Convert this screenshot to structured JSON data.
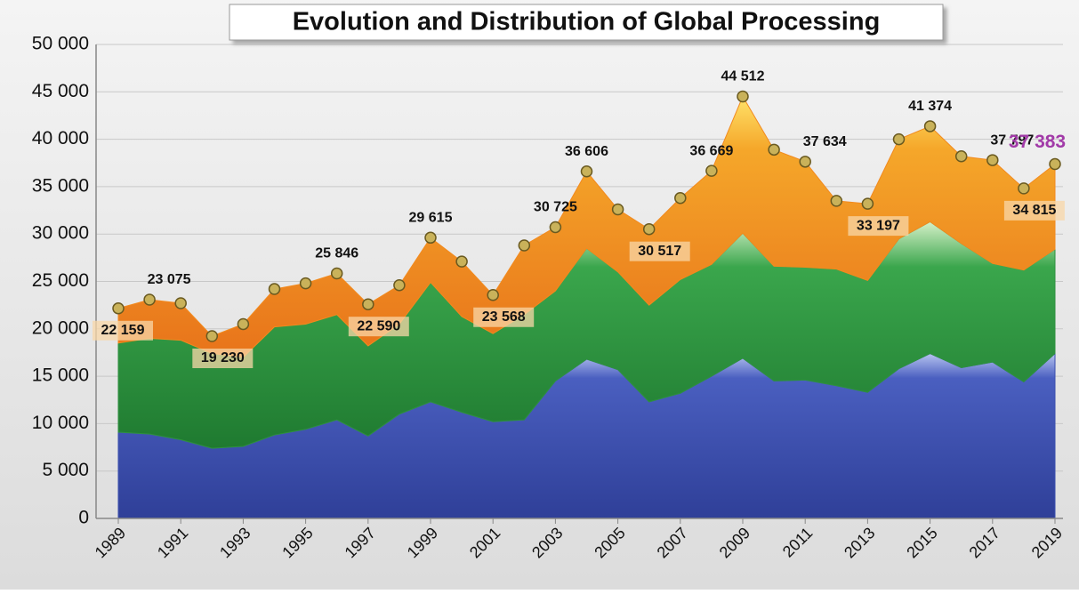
{
  "chart_data": {
    "type": "stacked-area",
    "title": "Evolution and Distribution of Global Processing",
    "x": [
      1989,
      1990,
      1991,
      1992,
      1993,
      1994,
      1995,
      1996,
      1997,
      1998,
      1999,
      2000,
      2001,
      2002,
      2003,
      2004,
      2005,
      2006,
      2007,
      2008,
      2009,
      2010,
      2011,
      2012,
      2013,
      2014,
      2015,
      2016,
      2017,
      2018,
      2019
    ],
    "xlim": [
      1989,
      2019
    ],
    "xticks": [
      1989,
      1991,
      1993,
      1995,
      1997,
      1999,
      2001,
      2003,
      2005,
      2007,
      2009,
      2011,
      2013,
      2015,
      2017,
      2019
    ],
    "ylim": [
      0,
      50000
    ],
    "yticks": [
      0,
      {
        "value": 5000,
        "label": "5 000"
      },
      {
        "value": 10000,
        "label": "10 000"
      },
      {
        "value": 15000,
        "label": "15 000"
      },
      {
        "value": 20000,
        "label": "20 000"
      },
      {
        "value": 25000,
        "label": "25 000"
      },
      {
        "value": 30000,
        "label": "30 000"
      },
      {
        "value": 35000,
        "label": "35 000"
      },
      {
        "value": 40000,
        "label": "40 000"
      },
      {
        "value": 45000,
        "label": "45 000"
      },
      {
        "value": 50000,
        "label": "50 000"
      }
    ],
    "grid": true,
    "series": [
      {
        "color": "#3b4fae",
        "values": [
          9100,
          8900,
          8300,
          7400,
          7600,
          8800,
          9400,
          10400,
          8700,
          11000,
          12300,
          11200,
          10200,
          10400,
          14500,
          16800,
          15700,
          12300,
          13200,
          15000,
          16900,
          14500,
          14600,
          14000,
          13300,
          15800,
          17400,
          15900,
          16500,
          14400,
          17400
        ]
      },
      {
        "color": "#2f9140",
        "values": [
          9400,
          10100,
          10500,
          10000,
          9400,
          11400,
          11100,
          11100,
          9500,
          9500,
          12600,
          10100,
          9300,
          11100,
          9500,
          11700,
          10300,
          10200,
          12000,
          11800,
          13200,
          12100,
          11900,
          12300,
          11800,
          13700,
          13900,
          13100,
          10400,
          11800,
          11000
        ]
      },
      {
        "color": "#f28a1e",
        "values": [
          3659,
          4075,
          3900,
          1830,
          3500,
          4000,
          4300,
          4346,
          4390,
          4100,
          4715,
          5800,
          4068,
          7300,
          6725,
          8106,
          6600,
          8017,
          8600,
          9869,
          14412,
          12300,
          11134,
          7200,
          8097,
          10500,
          10074,
          9200,
          10897,
          8615,
          8983
        ]
      }
    ],
    "totals": {
      "color": "#c9b25a",
      "values": [
        22159,
        23075,
        22700,
        19230,
        20500,
        24200,
        24800,
        25846,
        22590,
        24600,
        29615,
        27100,
        23568,
        28800,
        30725,
        36606,
        32600,
        30517,
        33800,
        36669,
        44512,
        38900,
        37634,
        33500,
        33197,
        40000,
        41374,
        38200,
        37797,
        34815,
        37383
      ],
      "value_labels": [
        "22 159",
        "23 075",
        null,
        "19 230",
        null,
        null,
        null,
        "25 846",
        "22 590",
        null,
        "29 615",
        null,
        "23 568",
        null,
        "30 725",
        "36 606",
        null,
        "30 517",
        null,
        "36 669",
        "44 512",
        null,
        "37 634",
        null,
        "33 197",
        null,
        "41 374",
        null,
        "37 797",
        "34 815",
        "37 383"
      ]
    }
  }
}
